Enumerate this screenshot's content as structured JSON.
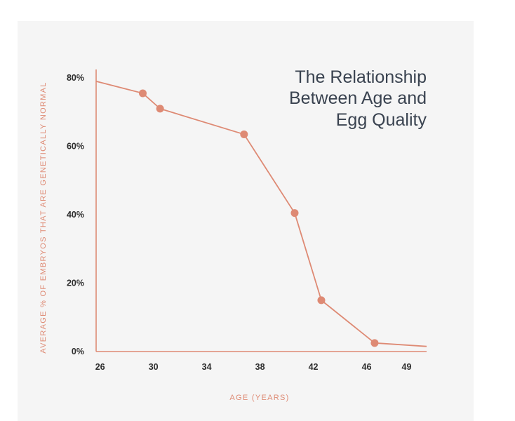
{
  "chart_data": {
    "type": "line",
    "title_lines": [
      "The Relationship",
      "Between Age and",
      "Egg Quality"
    ],
    "xlabel": "AGE (YEARS)",
    "ylabel": "AVERAGE % OF EMBRYOS THAT ARE GENETICALLY NORMAL",
    "x_ticks": [
      26,
      30,
      34,
      38,
      42,
      46,
      49
    ],
    "y_ticks": [
      "0%",
      "20%",
      "40%",
      "60%",
      "80%"
    ],
    "y_tick_values": [
      0,
      20,
      40,
      60,
      80
    ],
    "xlim": [
      25.7,
      50.5
    ],
    "ylim": [
      0,
      80
    ],
    "series": [
      {
        "x": [
          25.7,
          29.2,
          30.5,
          36.8,
          40.6,
          42.6,
          46.6,
          50.5
        ],
        "y": [
          79,
          75.5,
          71,
          63.5,
          40.5,
          15,
          2.5,
          1.5
        ],
        "markers": [
          false,
          true,
          true,
          true,
          true,
          true,
          true,
          false
        ]
      }
    ],
    "grid": false,
    "colors": {
      "line": "#de8a74",
      "axis": "#de8a74",
      "label": "#de8a74"
    }
  }
}
